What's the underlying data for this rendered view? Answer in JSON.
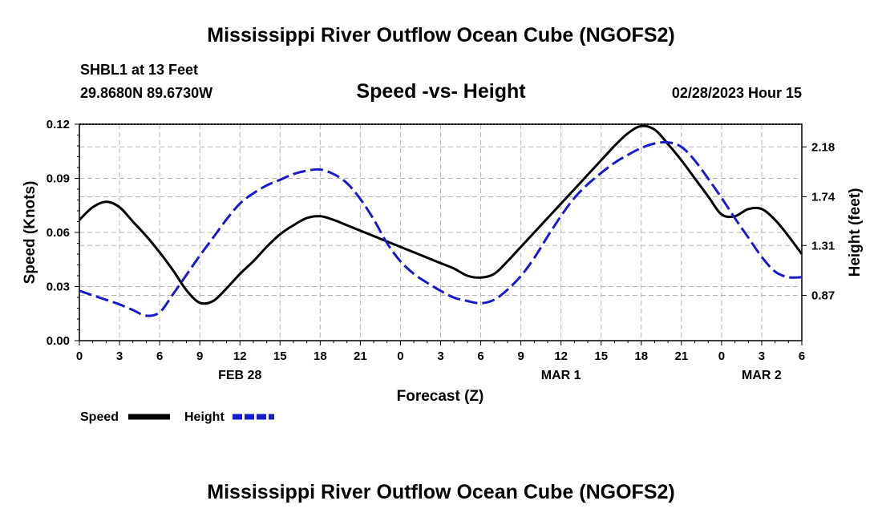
{
  "page": {
    "title_top": "Mississippi River Outflow Ocean Cube (NGOFS2)",
    "title_bottom": "Mississippi River Outflow Ocean Cube (NGOFS2)",
    "station_label": "SHBL1 at 13 Feet",
    "coordinates": "29.8680N  89.6730W",
    "subtitle": "Speed -vs- Height",
    "timestamp": "02/28/2023 Hour 15",
    "legend_speed": "Speed",
    "legend_height": "Height"
  },
  "chart_data": {
    "type": "line",
    "title": "Speed -vs- Height",
    "xlabel": "Forecast (Z)",
    "ylabel": "Speed (Knots)",
    "y2label": "Height (feet)",
    "x_range_hours": [
      0,
      54
    ],
    "x_tick_hours": [
      0,
      3,
      6,
      9,
      12,
      15,
      18,
      21,
      24,
      27,
      30,
      33,
      36,
      39,
      42,
      45,
      48,
      51,
      54
    ],
    "x_tick_labels": [
      "0",
      "3",
      "6",
      "9",
      "12",
      "15",
      "18",
      "21",
      "0",
      "3",
      "6",
      "9",
      "12",
      "15",
      "18",
      "21",
      "0",
      "3",
      "6"
    ],
    "date_labels": [
      {
        "hour": 12,
        "label": "FEB 28"
      },
      {
        "hour": 36,
        "label": "MAR 1"
      },
      {
        "hour": 51,
        "label": "MAR 2"
      }
    ],
    "ylim": [
      0,
      0.12
    ],
    "y_ticks": [
      0.0,
      0.03,
      0.06,
      0.09,
      0.12
    ],
    "y_tick_labels": [
      "0.00",
      "0.03",
      "0.06",
      "0.09",
      "0.12"
    ],
    "y2lim": [
      0.47,
      2.38
    ],
    "y2_ticks": [
      0.87,
      1.31,
      1.74,
      2.18
    ],
    "y2_tick_labels": [
      "0.87",
      "1.31",
      "1.74",
      "2.18"
    ],
    "series": [
      {
        "name": "Speed",
        "color": "#000000",
        "axis": "left",
        "x": [
          0,
          1,
          2,
          3,
          4,
          5,
          6,
          7,
          8,
          9,
          10,
          11,
          12,
          13,
          14,
          15,
          16,
          17,
          18,
          19,
          20,
          21,
          22,
          23,
          24,
          25,
          26,
          27,
          28,
          29,
          30,
          31,
          32,
          33,
          34,
          35,
          36,
          37,
          38,
          39,
          40,
          41,
          42,
          43,
          44,
          45,
          46,
          47,
          48,
          49,
          50,
          51,
          52,
          53,
          54
        ],
        "values": [
          0.067,
          0.074,
          0.077,
          0.074,
          0.066,
          0.058,
          0.049,
          0.039,
          0.028,
          0.021,
          0.022,
          0.029,
          0.037,
          0.044,
          0.052,
          0.059,
          0.064,
          0.068,
          0.069,
          0.067,
          0.064,
          0.061,
          0.058,
          0.055,
          0.052,
          0.049,
          0.046,
          0.043,
          0.04,
          0.036,
          0.035,
          0.037,
          0.044,
          0.052,
          0.06,
          0.068,
          0.076,
          0.084,
          0.092,
          0.1,
          0.108,
          0.115,
          0.119,
          0.117,
          0.109,
          0.1,
          0.09,
          0.08,
          0.07,
          0.069,
          0.073,
          0.073,
          0.067,
          0.058,
          0.048
        ]
      },
      {
        "name": "Height",
        "color": "#1a1acc",
        "axis": "right",
        "x": [
          0,
          1,
          2,
          3,
          4,
          5,
          6,
          7,
          8,
          9,
          10,
          11,
          12,
          13,
          14,
          15,
          16,
          17,
          18,
          19,
          20,
          21,
          22,
          23,
          24,
          25,
          26,
          27,
          28,
          29,
          30,
          31,
          32,
          33,
          34,
          35,
          36,
          37,
          38,
          39,
          40,
          41,
          42,
          43,
          44,
          45,
          46,
          47,
          48,
          49,
          50,
          51,
          52,
          53,
          54
        ],
        "values": [
          0.91,
          0.87,
          0.83,
          0.79,
          0.74,
          0.69,
          0.72,
          0.88,
          1.05,
          1.22,
          1.38,
          1.54,
          1.68,
          1.77,
          1.84,
          1.89,
          1.94,
          1.97,
          1.98,
          1.94,
          1.86,
          1.72,
          1.54,
          1.33,
          1.17,
          1.06,
          0.98,
          0.91,
          0.85,
          0.82,
          0.8,
          0.83,
          0.92,
          1.04,
          1.2,
          1.39,
          1.57,
          1.73,
          1.85,
          1.95,
          2.04,
          2.11,
          2.17,
          2.21,
          2.22,
          2.18,
          2.06,
          1.9,
          1.73,
          1.55,
          1.38,
          1.21,
          1.08,
          1.03,
          1.03
        ]
      }
    ]
  }
}
